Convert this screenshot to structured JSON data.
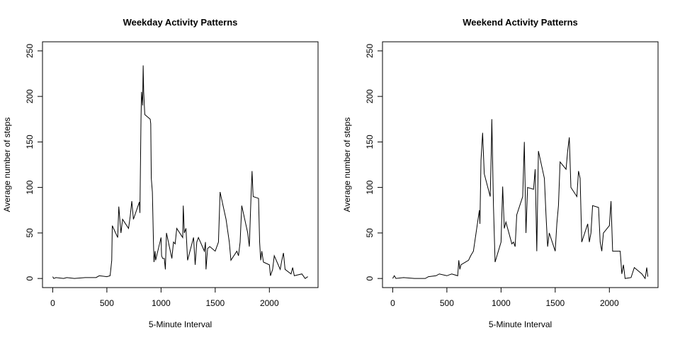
{
  "chart_data": [
    {
      "type": "line",
      "title": "Weekday Activity Patterns",
      "x_label": "5-Minute Interval",
      "y_label": "Average number of steps",
      "color": "#000000",
      "x": [
        0,
        10,
        30,
        100,
        130,
        200,
        300,
        400,
        430,
        500,
        530,
        545,
        550,
        600,
        610,
        630,
        645,
        700,
        715,
        730,
        745,
        800,
        805,
        815,
        820,
        830,
        835,
        840,
        850,
        900,
        905,
        910,
        920,
        930,
        935,
        945,
        950,
        1000,
        1005,
        1015,
        1030,
        1040,
        1050,
        1100,
        1115,
        1130,
        1145,
        1200,
        1205,
        1215,
        1230,
        1245,
        1300,
        1315,
        1330,
        1345,
        1400,
        1410,
        1415,
        1430,
        1450,
        1500,
        1530,
        1545,
        1600,
        1630,
        1645,
        1700,
        1715,
        1730,
        1745,
        1800,
        1815,
        1830,
        1840,
        1850,
        1900,
        1910,
        1920,
        1930,
        1945,
        2000,
        2010,
        2030,
        2045,
        2100,
        2115,
        2130,
        2145,
        2200,
        2215,
        2230,
        2300,
        2330,
        2355
      ],
      "values": [
        2,
        0,
        1,
        0,
        1,
        0,
        1,
        1,
        3,
        2,
        3,
        20,
        58,
        45,
        79,
        50,
        65,
        55,
        68,
        85,
        65,
        84,
        72,
        175,
        205,
        190,
        234,
        205,
        180,
        175,
        170,
        110,
        95,
        40,
        18,
        30,
        20,
        45,
        25,
        22,
        22,
        10,
        50,
        22,
        40,
        38,
        55,
        45,
        80,
        50,
        55,
        20,
        45,
        15,
        40,
        45,
        30,
        40,
        10,
        33,
        35,
        30,
        40,
        95,
        65,
        40,
        20,
        30,
        25,
        40,
        80,
        50,
        35,
        88,
        118,
        90,
        88,
        40,
        20,
        30,
        18,
        15,
        3,
        10,
        25,
        10,
        20,
        28,
        10,
        5,
        12,
        3,
        5,
        0,
        2
      ],
      "xlim": [
        -94.2,
        2449.2
      ],
      "ylim": [
        -10,
        260
      ],
      "xticks": [
        0,
        500,
        1000,
        1500,
        2000
      ],
      "yticks": [
        0,
        50,
        100,
        150,
        200,
        250
      ]
    },
    {
      "type": "line",
      "title": "Weekend Activity Patterns",
      "x_label": "5-Minute Interval",
      "y_label": "Average number of steps",
      "color": "#000000",
      "x": [
        0,
        15,
        30,
        100,
        200,
        300,
        330,
        400,
        430,
        500,
        545,
        600,
        610,
        620,
        630,
        700,
        720,
        745,
        800,
        805,
        815,
        830,
        845,
        900,
        910,
        915,
        930,
        945,
        1000,
        1015,
        1030,
        1045,
        1100,
        1115,
        1130,
        1145,
        1200,
        1215,
        1230,
        1245,
        1300,
        1315,
        1330,
        1345,
        1400,
        1415,
        1430,
        1445,
        1500,
        1515,
        1530,
        1545,
        1600,
        1615,
        1630,
        1645,
        1700,
        1715,
        1730,
        1745,
        1800,
        1815,
        1830,
        1845,
        1900,
        1915,
        1930,
        1945,
        2000,
        2015,
        2030,
        2100,
        2115,
        2130,
        2145,
        2200,
        2230,
        2300,
        2330,
        2345,
        2355
      ],
      "values": [
        0,
        3,
        0,
        1,
        0,
        0,
        2,
        3,
        5,
        3,
        5,
        3,
        20,
        10,
        15,
        20,
        25,
        30,
        75,
        60,
        130,
        160,
        115,
        90,
        140,
        175,
        80,
        18,
        40,
        101,
        55,
        62,
        38,
        40,
        35,
        70,
        90,
        150,
        50,
        100,
        98,
        120,
        30,
        140,
        110,
        70,
        35,
        50,
        30,
        60,
        80,
        128,
        120,
        140,
        155,
        100,
        90,
        118,
        110,
        40,
        60,
        40,
        50,
        80,
        78,
        40,
        30,
        50,
        58,
        85,
        30,
        30,
        5,
        15,
        0,
        1,
        12,
        5,
        0,
        12,
        2
      ],
      "xlim": [
        -94.2,
        2449.2
      ],
      "ylim": [
        -10,
        260
      ],
      "xticks": [
        0,
        500,
        1000,
        1500,
        2000
      ],
      "yticks": [
        0,
        50,
        100,
        150,
        200,
        250
      ]
    }
  ]
}
